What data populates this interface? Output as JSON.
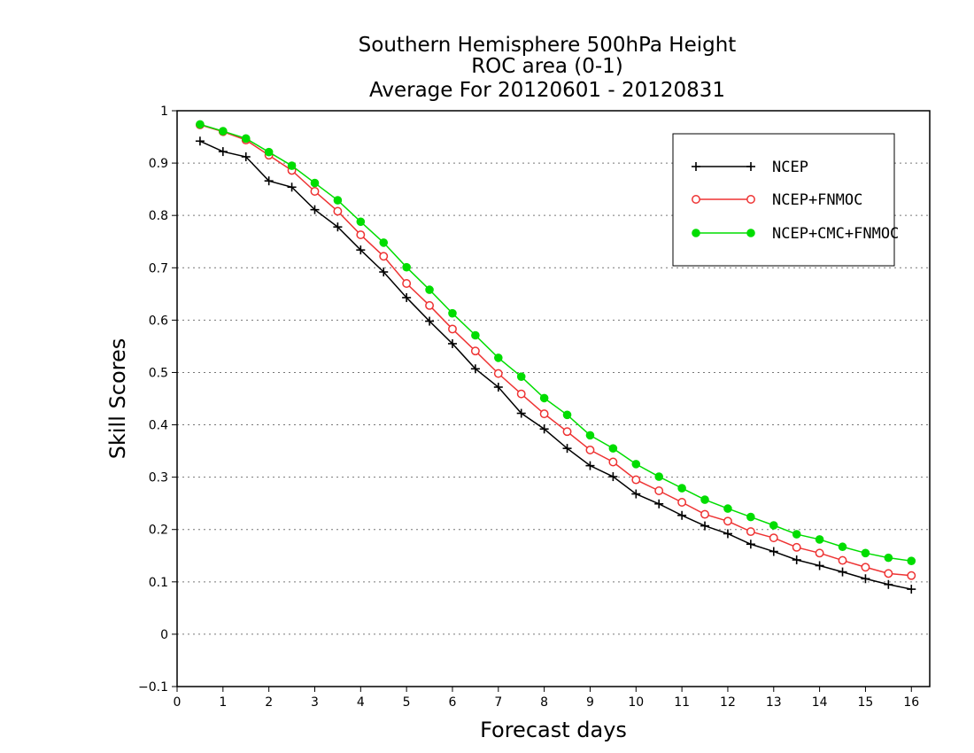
{
  "chart_data": {
    "type": "line",
    "title": [
      "Southern Hemisphere 500hPa Height",
      "ROC area (0-1)",
      "Average For 20120601 - 20120831"
    ],
    "xlabel": "Forecast days",
    "ylabel": "Skill Scores",
    "xlim": [
      0,
      16.4
    ],
    "ylim": [
      -0.1,
      1
    ],
    "x_ticks": [
      "0",
      "1",
      "2",
      "3",
      "4",
      "5",
      "6",
      "7",
      "8",
      "9",
      "10",
      "11",
      "12",
      "13",
      "14",
      "15",
      "16"
    ],
    "y_ticks": [
      "−0.1",
      "0",
      "0.1",
      "0.2",
      "0.3",
      "0.4",
      "0.5",
      "0.6",
      "0.7",
      "0.8",
      "0.9",
      "1"
    ],
    "grid": "horizontal dotted",
    "legend_position": "top-right",
    "x": [
      0.5,
      1,
      1.5,
      2,
      2.5,
      3,
      3.5,
      4,
      4.5,
      5,
      5.5,
      6,
      6.5,
      7,
      7.5,
      8,
      8.5,
      9,
      9.5,
      10,
      10.5,
      11,
      11.5,
      12,
      12.5,
      13,
      13.5,
      14,
      14.5,
      15,
      15.5,
      16
    ],
    "series": [
      {
        "name": "NCEP",
        "color": "#000000",
        "marker": "plus",
        "values": [
          0.942,
          0.922,
          0.912,
          0.866,
          0.854,
          0.811,
          0.778,
          0.734,
          0.692,
          0.643,
          0.598,
          0.555,
          0.507,
          0.472,
          0.422,
          0.392,
          0.355,
          0.322,
          0.301,
          0.268,
          0.249,
          0.227,
          0.207,
          0.192,
          0.172,
          0.158,
          0.142,
          0.131,
          0.119,
          0.106,
          0.095,
          0.086
        ]
      },
      {
        "name": "NCEP+FNMOC",
        "color": "#ee3333",
        "marker": "open-circle",
        "values": [
          0.973,
          0.96,
          0.944,
          0.915,
          0.886,
          0.846,
          0.808,
          0.763,
          0.722,
          0.67,
          0.628,
          0.583,
          0.541,
          0.498,
          0.459,
          0.421,
          0.387,
          0.352,
          0.329,
          0.295,
          0.274,
          0.252,
          0.229,
          0.216,
          0.196,
          0.184,
          0.166,
          0.155,
          0.141,
          0.128,
          0.116,
          0.112
        ]
      },
      {
        "name": "NCEP+CMC+FNMOC",
        "color": "#00dd00",
        "marker": "filled-circle",
        "values": [
          0.974,
          0.961,
          0.947,
          0.921,
          0.895,
          0.862,
          0.829,
          0.788,
          0.748,
          0.701,
          0.658,
          0.613,
          0.571,
          0.528,
          0.492,
          0.451,
          0.419,
          0.38,
          0.355,
          0.325,
          0.301,
          0.279,
          0.257,
          0.24,
          0.224,
          0.208,
          0.191,
          0.181,
          0.167,
          0.155,
          0.146,
          0.14
        ]
      }
    ]
  }
}
